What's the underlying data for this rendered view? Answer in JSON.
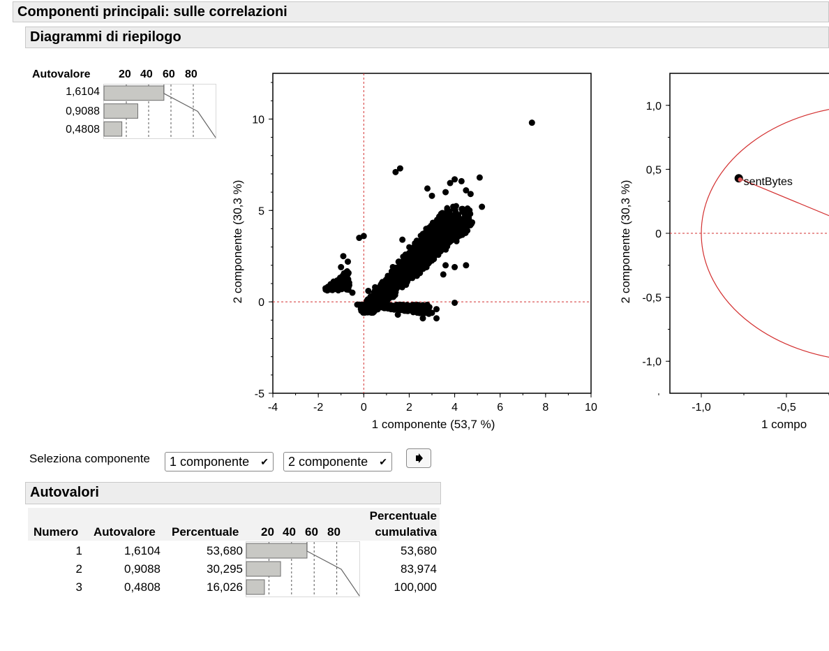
{
  "header": {
    "title": "Componenti principali: sulle correlazioni",
    "summary_title": "Diagrammi di riepilogo",
    "eigen_title": "Autovalori"
  },
  "mini_table": {
    "col_header": "Autovalore",
    "scale_labels": [
      "20",
      "40",
      "60",
      "80"
    ],
    "values": [
      "1,6104",
      "0,9088",
      "0,4808"
    ]
  },
  "selector": {
    "label": "Seleziona componente",
    "first_value": "1 componente",
    "second_value": "2 componente"
  },
  "eigen_table": {
    "headers": {
      "number": "Numero",
      "eigenvalue": "Autovalore",
      "percent": "Percentuale",
      "cum_line1": "Percentuale",
      "cum_line2": "cumulativa"
    },
    "scale_labels": [
      "20",
      "40",
      "60",
      "80"
    ],
    "rows": [
      {
        "n": "1",
        "eig": "1,6104",
        "pct": "53,680",
        "cum": "53,680"
      },
      {
        "n": "2",
        "eig": "0,9088",
        "pct": "30,295",
        "cum": "83,974"
      },
      {
        "n": "3",
        "eig": "0,4808",
        "pct": "16,026",
        "cum": "100,000"
      }
    ]
  },
  "chart_data": [
    {
      "type": "bar",
      "orientation": "horizontal",
      "categories": [
        "1,6104",
        "0,9088",
        "0,4808"
      ],
      "values": [
        53.68,
        30.295,
        16.026
      ],
      "cumulative": [
        53.68,
        83.974,
        100.0
      ],
      "xlim": [
        0,
        100
      ],
      "ticks": [
        "20",
        "40",
        "60",
        "80"
      ]
    },
    {
      "type": "scatter",
      "xlabel": "1 componente  (53,7 %)",
      "ylabel": "2 componente  (30,3 %)",
      "xlim": [
        -4,
        10
      ],
      "ylim": [
        -5,
        12.5
      ],
      "x_ticks": [
        "-4",
        "-2",
        "0",
        "2",
        "4",
        "6",
        "8",
        "10"
      ],
      "y_ticks": [
        "-5",
        "0",
        "5",
        "10"
      ],
      "reference_lines": {
        "x": 0,
        "y": 0
      },
      "points": [
        [
          7.4,
          9.8
        ],
        [
          1.6,
          7.3
        ],
        [
          1.4,
          7.1
        ],
        [
          3.8,
          6.5
        ],
        [
          4.0,
          6.7
        ],
        [
          5.1,
          6.8
        ],
        [
          4.3,
          6.6
        ],
        [
          2.8,
          6.2
        ],
        [
          3.6,
          6.0
        ],
        [
          4.5,
          6.1
        ],
        [
          4.7,
          5.9
        ],
        [
          3.0,
          5.8
        ],
        [
          5.2,
          5.2
        ],
        [
          0.0,
          3.6
        ],
        [
          -0.2,
          3.5
        ],
        [
          1.7,
          3.4
        ],
        [
          -0.9,
          2.5
        ],
        [
          -0.7,
          2.2
        ],
        [
          -1.0,
          1.9
        ],
        [
          4.5,
          2.0
        ],
        [
          3.6,
          2.0
        ],
        [
          4.0,
          1.9
        ],
        [
          3.5,
          1.5
        ],
        [
          4.0,
          -0.05
        ],
        [
          3.2,
          -0.4
        ],
        [
          2.8,
          -0.2
        ],
        [
          1.5,
          -0.7
        ],
        [
          2.6,
          -0.9
        ],
        [
          3.2,
          -0.9
        ],
        [
          3.0,
          -0.6
        ],
        [
          0.5,
          0.8
        ],
        [
          0.2,
          0.6
        ],
        [
          -0.5,
          0.5
        ]
      ],
      "dense_clusters": [
        {
          "description": "band",
          "x_range": [
            0.0,
            4.4
          ],
          "y_range": [
            -0.6,
            5.0
          ]
        },
        {
          "description": "left wedge",
          "x_range": [
            -1.7,
            -0.6
          ],
          "y_range": [
            0.6,
            1.8
          ]
        }
      ]
    },
    {
      "type": "scatter",
      "subtype": "loading-plot",
      "xlabel": "1 compo",
      "ylabel": "2 componente  (30,3 %)",
      "xlim": [
        -1.25,
        0.6
      ],
      "ylim": [
        -1.25,
        1.25
      ],
      "x_ticks": [
        "-1,0",
        "-0,5"
      ],
      "y_ticks": [
        "1,0",
        "0,5",
        "0",
        "-0,5",
        "-1,0"
      ],
      "points": [
        {
          "label": "sentBytes",
          "x": -0.78,
          "y": 0.43
        }
      ],
      "circle_radius": 1.0,
      "reference_lines": {
        "y": 0
      }
    }
  ]
}
